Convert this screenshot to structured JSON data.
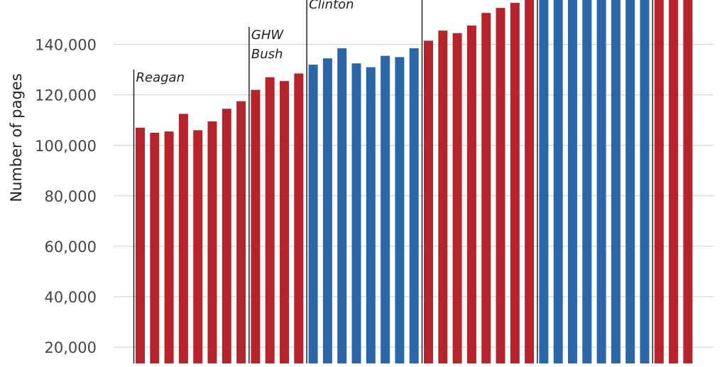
{
  "chart_data": {
    "type": "bar",
    "title": "",
    "xlabel": "",
    "ylabel": "Number of pages",
    "ylim": [
      0,
      160000
    ],
    "y_ticks": [
      20000,
      40000,
      60000,
      80000,
      100000,
      120000,
      140000
    ],
    "y_tick_labels": [
      "20,000",
      "40,000",
      "60,000",
      "80,000",
      "100,000",
      "120,000",
      "140,000"
    ],
    "grid": true,
    "colors": {
      "republican": "#b5232b",
      "democrat": "#2a66a8"
    },
    "values": [
      107000,
      105000,
      105500,
      112500,
      106000,
      109500,
      114500,
      117500,
      122000,
      127000,
      125500,
      128500,
      132000,
      134500,
      138500,
      132500,
      131000,
      135500,
      135000,
      138500,
      141500,
      145500,
      144500,
      147500,
      152500,
      154500,
      156500,
      159500,
      165000,
      165000,
      165000,
      165000,
      165000,
      165000,
      165000,
      165000,
      165000,
      165000,
      165000
    ],
    "party": [
      "R",
      "R",
      "R",
      "R",
      "R",
      "R",
      "R",
      "R",
      "R",
      "R",
      "R",
      "R",
      "D",
      "D",
      "D",
      "D",
      "D",
      "D",
      "D",
      "D",
      "R",
      "R",
      "R",
      "R",
      "R",
      "R",
      "R",
      "R",
      "D",
      "D",
      "D",
      "D",
      "D",
      "D",
      "D",
      "D",
      "R",
      "R",
      "R"
    ],
    "administrations": [
      {
        "label": [
          "Reagan"
        ],
        "start_index": 0
      },
      {
        "label": [
          "GHW",
          "Bush"
        ],
        "start_index": 8
      },
      {
        "label": [
          "Clinton"
        ],
        "start_index": 12
      },
      {
        "label": [],
        "start_index": 20
      },
      {
        "label": [],
        "start_index": 28
      },
      {
        "label": [],
        "start_index": 36
      }
    ]
  }
}
